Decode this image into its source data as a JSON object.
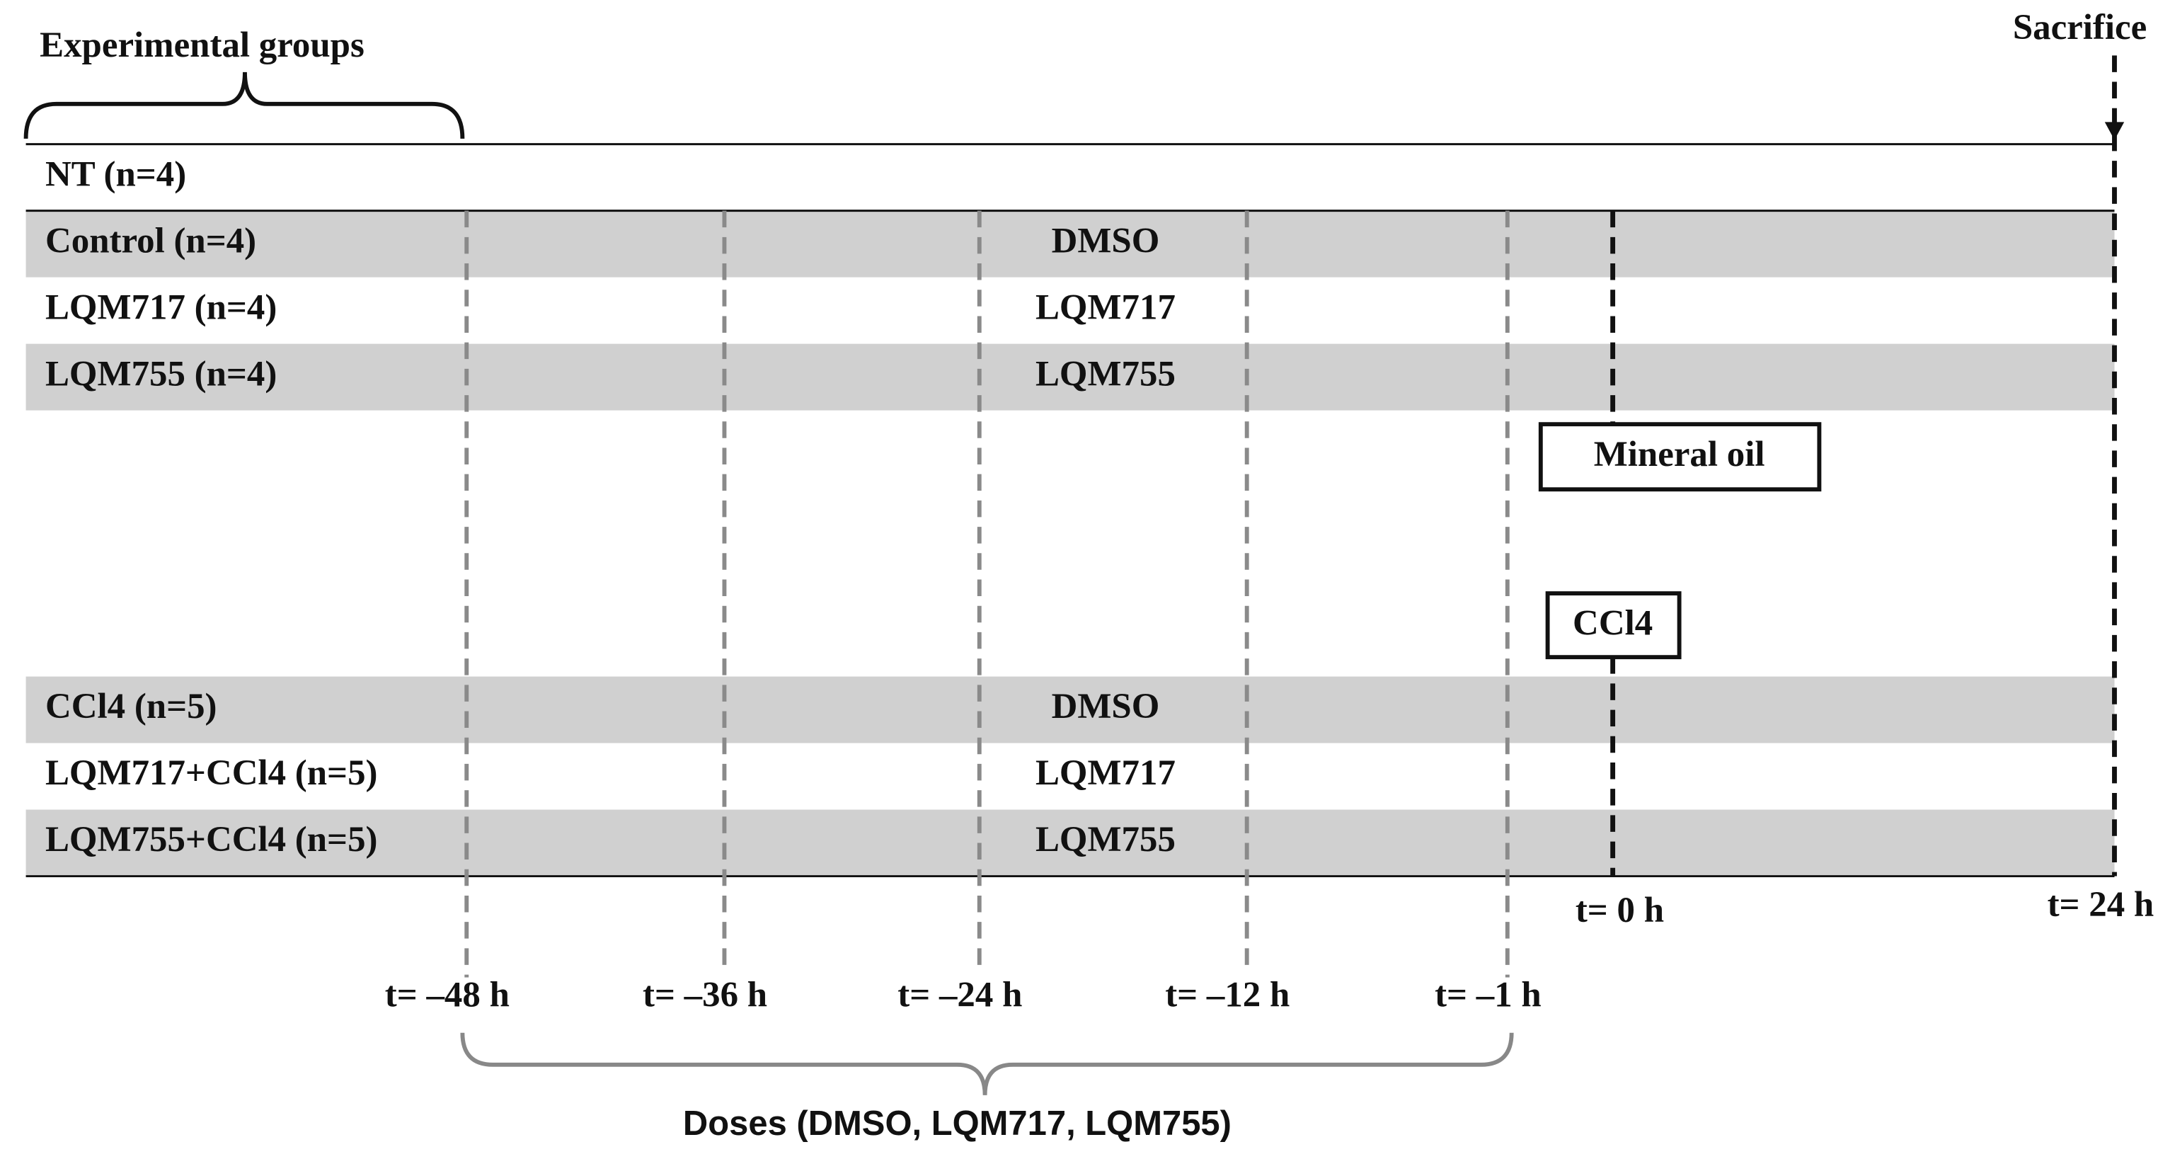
{
  "title": "Experimental groups",
  "sacrifice": "Sacrifice",
  "groups": [
    {
      "label": "NT (n=4)",
      "treatment": null
    },
    {
      "label": "Control (n=4)",
      "treatment": "DMSO"
    },
    {
      "label": "LQM717 (n=4)",
      "treatment": "LQM717"
    },
    {
      "label": "LQM755 (n=4)",
      "treatment": "LQM755"
    },
    {
      "label": "CCl4 (n=5)",
      "treatment": "DMSO"
    },
    {
      "label": "LQM717+CCl4 (n=5)",
      "treatment": "LQM717"
    },
    {
      "label": "LQM755+CCl4 (n=5)",
      "treatment": "LQM755"
    }
  ],
  "inducers": [
    "Mineral  oil",
    "CCl4"
  ],
  "dose_times": [
    "t= –48 h",
    "t= –36 h",
    "t= –24 h",
    "t= –12 h",
    "t= –1 h"
  ],
  "induction_time": "t= 0 h",
  "sacrifice_time": "t= 24 h",
  "doses_label": "Doses (DMSO, LQM717, LQM755)"
}
